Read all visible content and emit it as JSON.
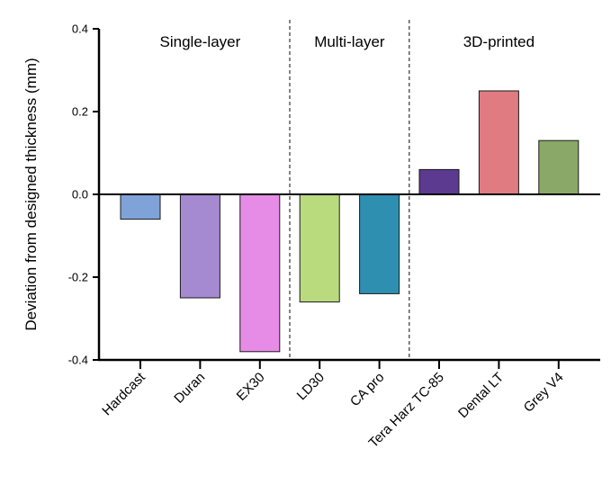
{
  "chart_data": {
    "type": "bar",
    "title": "",
    "xlabel": "",
    "ylabel": "Deviation from designed thickness (mm)",
    "ylim": [
      -0.4,
      0.4
    ],
    "yticks": [
      0.4,
      0.2,
      0.0,
      -0.2,
      -0.4
    ],
    "ytick_labels": [
      "0.4",
      "0.2",
      "0.0",
      "-0.2",
      "-0.4"
    ],
    "grid": false,
    "categories": [
      "Hardcast",
      "Duran",
      "EX30",
      "LD30",
      "CA pro",
      "Tera Harz TC-85",
      "Dental LT",
      "Grey V4"
    ],
    "values": [
      -0.06,
      -0.25,
      -0.38,
      -0.26,
      -0.24,
      0.06,
      0.25,
      0.13
    ],
    "colors": [
      "#7fa2d8",
      "#a58ad2",
      "#e78ce6",
      "#b9db7e",
      "#2e8fb1",
      "#5b3a8f",
      "#e07b82",
      "#8aa867"
    ],
    "groups": [
      {
        "label": "Single-layer",
        "start": 0,
        "end": 2
      },
      {
        "label": "Multi-layer",
        "start": 3,
        "end": 4
      },
      {
        "label": "3D-printed",
        "start": 5,
        "end": 7
      }
    ]
  }
}
